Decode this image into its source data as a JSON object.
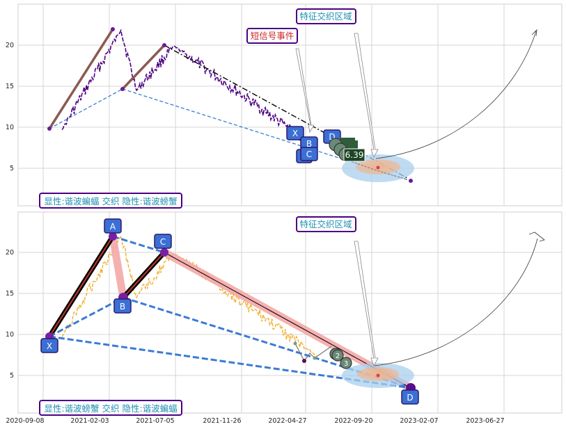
{
  "chart_data": [
    {
      "type": "line",
      "panel": "top",
      "ylim": [
        1,
        25
      ],
      "yticks": [
        5,
        10,
        15,
        20
      ],
      "grid": true,
      "price_series_color": "#4b0082",
      "pattern_points": [
        {
          "date": "2020-10-20",
          "value": 9.7
        },
        {
          "date": "2021-03-01",
          "value": 21.8
        },
        {
          "date": "2021-04-05",
          "value": 14.5
        },
        {
          "date": "2021-06-28",
          "value": 19.9
        },
        {
          "date": "2023-01-20",
          "value": 3.3
        }
      ],
      "annotations": {
        "short_signal_event": "短信号事件",
        "feature_intersection": "特征交织区域",
        "legend_box": "显性:谐波蝙蝠 交织 隐性:谐波螃蟹"
      },
      "point_labels": [
        "X",
        "B",
        "C",
        "D"
      ],
      "value_badges": [
        "6.39"
      ]
    },
    {
      "type": "line",
      "panel": "bottom",
      "ylim": [
        1,
        25
      ],
      "yticks": [
        5,
        10,
        15,
        20
      ],
      "grid": true,
      "price_series_color": "#f0b030",
      "pattern_points": [
        {
          "label": "X",
          "date": "2020-10-20",
          "value": 9.7
        },
        {
          "label": "A",
          "date": "2021-03-01",
          "value": 22.0
        },
        {
          "label": "B",
          "date": "2021-04-05",
          "value": 14.5
        },
        {
          "label": "C",
          "date": "2021-06-28",
          "value": 19.9
        },
        {
          "label": "D",
          "date": "2023-01-20",
          "value": 3.3
        }
      ],
      "annotations": {
        "feature_intersection": "特征交织区域",
        "legend_box": "显性:谐波螃蟹 交织 隐性:谐波蝙蝠"
      },
      "point_labels": [
        "X",
        "A",
        "B",
        "C",
        "D"
      ],
      "small_badges": [
        "2",
        "3"
      ],
      "x_tick_labels": [
        "2020-09-08",
        "2021-02-03",
        "2021-07-05",
        "2021-11-26",
        "2022-04-27",
        "2022-09-20",
        "2023-02-07",
        "2023-06-27"
      ]
    }
  ]
}
